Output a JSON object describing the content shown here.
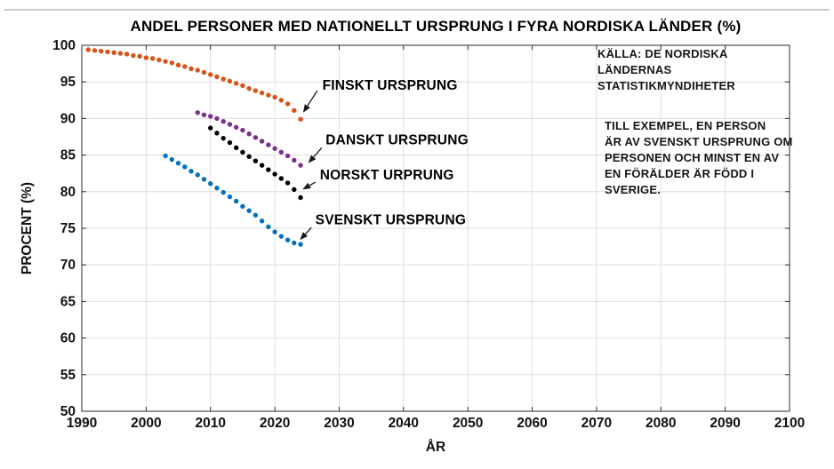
{
  "chart_data": {
    "type": "scatter",
    "title": "ANDEL PERSONER MED NATIONELLT URSPRUNG I FYRA NORDISKA LÄNDER (%)",
    "xlabel": "ÅR",
    "ylabel": "PROCENT (%)",
    "xlim": [
      1990,
      2100
    ],
    "ylim": [
      50,
      100
    ],
    "xticks": [
      1990,
      2000,
      2010,
      2020,
      2030,
      2040,
      2050,
      2060,
      2070,
      2080,
      2090,
      2100
    ],
    "yticks": [
      50,
      55,
      60,
      65,
      70,
      75,
      80,
      85,
      90,
      95,
      100
    ],
    "grid": true,
    "grid_color": "#dedede",
    "axis_color": "#2b2b2b",
    "marker_radius": 2.7,
    "series": [
      {
        "name": "FINSKT URSPRUNG",
        "color": "#d95319",
        "start_year": 1991,
        "values": [
          99.4,
          99.3,
          99.2,
          99.1,
          99.0,
          98.9,
          98.8,
          98.6,
          98.5,
          98.3,
          98.2,
          98.0,
          97.8,
          97.6,
          97.3,
          97.1,
          96.8,
          96.6,
          96.3,
          96.0,
          95.7,
          95.4,
          95.1,
          94.8,
          94.5,
          94.1,
          93.8,
          93.5,
          93.2,
          92.9,
          92.5,
          92.0,
          91.1,
          89.9
        ]
      },
      {
        "name": "DANSKT URSPRUNG",
        "color": "#7e2f8e",
        "start_year": 2008,
        "values": [
          90.8,
          90.5,
          90.3,
          90.0,
          89.6,
          89.2,
          88.8,
          88.4,
          87.9,
          87.4,
          86.9,
          86.4,
          85.9,
          85.4,
          84.9,
          84.3,
          83.6
        ]
      },
      {
        "name": "NORSKT URPRUNG",
        "color": "#000000",
        "start_year": 2010,
        "values": [
          88.7,
          88.0,
          87.3,
          86.7,
          86.0,
          85.4,
          84.8,
          84.2,
          83.6,
          83.0,
          82.4,
          81.8,
          81.2,
          80.3,
          79.2
        ]
      },
      {
        "name": "SVENSKT URSPRUNG",
        "color": "#0072bd",
        "start_year": 2003,
        "values": [
          84.9,
          84.4,
          83.9,
          83.4,
          82.8,
          82.3,
          81.7,
          81.1,
          80.5,
          79.9,
          79.3,
          78.7,
          78.0,
          77.4,
          76.8,
          76.0,
          75.2,
          74.5,
          73.9,
          73.4,
          73.0,
          72.8
        ]
      }
    ],
    "annotations": [
      {
        "text": "FINSKT URSPRUNG",
        "label": [
          2027.4,
          94.5
        ],
        "tail": [
          2026.6,
          93.8
        ],
        "tip": [
          2024.4,
          90.8
        ]
      },
      {
        "text": "DANSKT URSPRUNG",
        "label": [
          2027.9,
          87.0
        ],
        "tail": [
          2027.3,
          86.0
        ],
        "tip": [
          2025.2,
          83.9
        ]
      },
      {
        "text": "NORSKT URPRUNG",
        "label": [
          2027.0,
          82.2
        ],
        "tail": [
          2026.3,
          81.3
        ],
        "tip": [
          2024.3,
          80.3
        ]
      },
      {
        "text": "SVENSKT URSPRUNG",
        "label": [
          2026.3,
          76.1
        ],
        "tail": [
          2025.7,
          75.1
        ],
        "tip": [
          2023.9,
          73.4
        ]
      }
    ],
    "annotation_color": "#1a1a1a"
  },
  "notes": {
    "source": "KÄLLA: DE NORDISKA\nLÄNDERNAS\nSTATISTIKMYNDIHETER",
    "example": "TILL EXEMPEL, EN PERSON\nÄR AV SVENSKT URSPRUNG OM\nPERSONEN OCH MINST EN AV\nEN FÖRÄLDER ÄR FÖDD I\nSVERIGE."
  }
}
